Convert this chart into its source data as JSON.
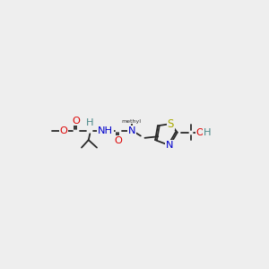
{
  "bg_color": "#eeeeee",
  "bond_color": "#2a2a2a",
  "O_color": "#dd0000",
  "N_color": "#0000cc",
  "S_color": "#aaaa00",
  "H_color": "#4a8888",
  "C_color": "#2a2a2a",
  "bond_lw": 1.3,
  "figsize": [
    3.0,
    3.0
  ],
  "dpi": 100,
  "xlim": [
    0,
    300
  ],
  "ylim": [
    0,
    300
  ]
}
